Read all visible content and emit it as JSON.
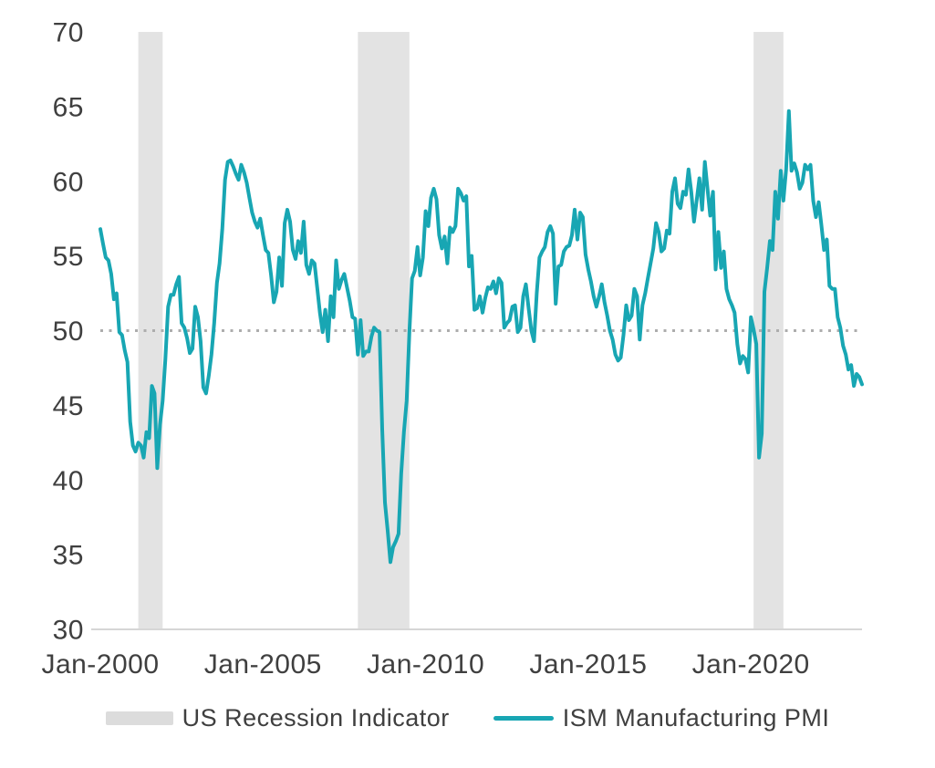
{
  "chart_data": {
    "type": "line",
    "title": "",
    "xlabel": "",
    "ylabel": "",
    "grid": false,
    "colors": {
      "line": "#18A6B3",
      "band": "#E3E3E3",
      "axis": "#D6D6D6",
      "reference": "#ADADAD",
      "text": "#3F3F3F"
    },
    "y_axis": {
      "min": 30,
      "max": 70,
      "tick_step": 5,
      "ticks": [
        70,
        65,
        60,
        55,
        50,
        45,
        40,
        35,
        30
      ]
    },
    "x_axis": {
      "start": "2000-01",
      "end": "2023-06",
      "frequency": "monthly",
      "ticks": [
        {
          "label": "Jan-2000",
          "position": "2000-01"
        },
        {
          "label": "Jan-2005",
          "position": "2005-01"
        },
        {
          "label": "Jan-2010",
          "position": "2010-01"
        },
        {
          "label": "Jan-2015",
          "position": "2015-01"
        },
        {
          "label": "Jan-2020",
          "position": "2020-01"
        }
      ]
    },
    "reference_line": {
      "value": 50,
      "style": "dotted"
    },
    "recession_bands": [
      {
        "from": "2001-03",
        "to": "2001-11"
      },
      {
        "from": "2007-12",
        "to": "2009-06"
      },
      {
        "from": "2020-02",
        "to": "2020-12"
      }
    ],
    "series": [
      {
        "name": "ISM Manufacturing PMI",
        "color": "#18A6B3",
        "start": "2000-01",
        "values": [
          56.8,
          55.8,
          54.9,
          54.7,
          53.8,
          52.1,
          52.5,
          49.9,
          49.7,
          48.7,
          47.9,
          43.9,
          42.3,
          41.9,
          42.5,
          42.3,
          41.5,
          43.2,
          42.8,
          46.3,
          45.8,
          40.8,
          43.7,
          45.3,
          48.1,
          51.6,
          52.4,
          52.4,
          53.1,
          53.6,
          50.5,
          50.2,
          49.5,
          48.5,
          48.8,
          51.6,
          50.9,
          49.3,
          46.2,
          45.8,
          47.0,
          48.4,
          50.5,
          53.2,
          54.5,
          56.8,
          60.1,
          61.3,
          61.4,
          61.0,
          60.5,
          60.1,
          61.1,
          60.6,
          59.9,
          58.9,
          57.9,
          57.3,
          56.9,
          57.5,
          56.4,
          55.4,
          55.2,
          53.7,
          51.9,
          52.6,
          54.9,
          53.0,
          57.2,
          58.1,
          57.3,
          55.4,
          54.8,
          56.0,
          55.2,
          57.3,
          54.4,
          53.8,
          54.7,
          54.5,
          52.9,
          51.2,
          49.9,
          51.4,
          49.3,
          52.3,
          50.9,
          54.7,
          52.8,
          53.4,
          53.8,
          52.9,
          52.0,
          50.9,
          50.8,
          48.4,
          50.7,
          48.3,
          48.6,
          48.6,
          49.6,
          50.2,
          50.0,
          49.9,
          43.4,
          38.5,
          36.6,
          34.5,
          35.5,
          35.9,
          36.4,
          40.4,
          43.2,
          45.3,
          49.9,
          53.5,
          54.0,
          55.6,
          53.7,
          54.9,
          58.0,
          57.0,
          58.9,
          59.5,
          58.8,
          56.4,
          55.5,
          56.3,
          54.5,
          56.9,
          56.6,
          57.0,
          59.5,
          59.2,
          58.7,
          59.0,
          54.3,
          55.0,
          51.4,
          51.5,
          52.3,
          51.2,
          52.2,
          52.9,
          52.8,
          53.3,
          52.5,
          53.5,
          53.2,
          50.2,
          50.5,
          50.7,
          51.6,
          51.7,
          49.9,
          50.2,
          52.3,
          53.1,
          51.5,
          50.0,
          49.3,
          52.5,
          54.9,
          55.3,
          55.6,
          56.6,
          57.0,
          56.5,
          51.8,
          54.3,
          54.4,
          55.3,
          55.6,
          55.7,
          56.4,
          58.1,
          56.1,
          57.9,
          57.6,
          55.1,
          54.1,
          53.3,
          52.3,
          51.6,
          52.3,
          53.1,
          51.9,
          51.0,
          50.0,
          49.4,
          48.4,
          48.0,
          48.2,
          49.7,
          51.7,
          50.7,
          51.0,
          52.8,
          52.3,
          49.4,
          51.7,
          52.5,
          53.5,
          54.5,
          55.5,
          57.2,
          56.6,
          55.3,
          55.5,
          56.7,
          56.5,
          59.3,
          60.2,
          58.5,
          58.2,
          59.3,
          59.1,
          60.8,
          59.3,
          57.3,
          58.7,
          60.2,
          58.1,
          61.3,
          59.5,
          57.7,
          59.3,
          54.1,
          56.6,
          54.2,
          55.3,
          52.8,
          52.1,
          51.7,
          51.2,
          49.1,
          47.8,
          48.3,
          48.1,
          47.2,
          50.9,
          50.1,
          49.1,
          41.5,
          43.1,
          52.6,
          54.2,
          56.0,
          55.4,
          59.3,
          57.5,
          60.7,
          58.7,
          60.8,
          64.7,
          60.7,
          61.2,
          60.6,
          59.5,
          59.9,
          61.1,
          60.8,
          61.1,
          58.7,
          57.6,
          58.6,
          57.1,
          55.4,
          56.1,
          53.0,
          52.8,
          52.8,
          50.9,
          50.2,
          49.0,
          48.4,
          47.4,
          47.7,
          46.3,
          47.1,
          46.9,
          46.4
        ]
      }
    ],
    "legend": [
      {
        "label": "US Recession Indicator",
        "swatch": "band",
        "color": "#DCDCDC"
      },
      {
        "label": "ISM Manufacturing PMI",
        "swatch": "line",
        "color": "#18A6B3"
      }
    ]
  }
}
